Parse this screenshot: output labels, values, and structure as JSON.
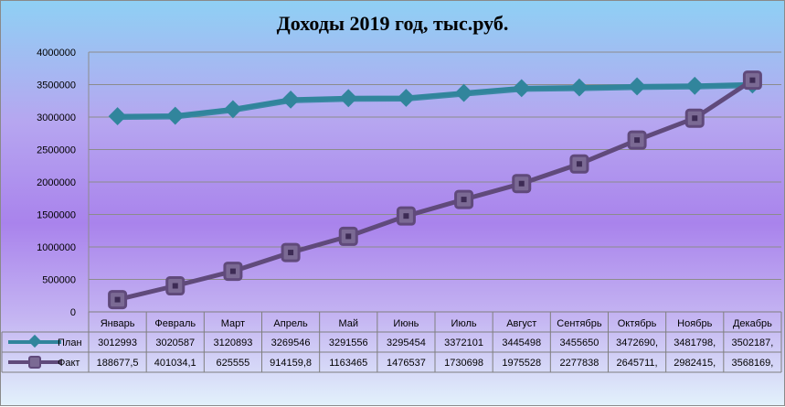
{
  "chart_data": {
    "type": "line",
    "title": "Доходы 2019 год, тыс.руб.",
    "categories": [
      "Январь",
      "Февраль",
      "Март",
      "Апрель",
      "Май",
      "Июнь",
      "Июль",
      "Август",
      "Сентябрь",
      "Октябрь",
      "Ноябрь",
      "Декабрь"
    ],
    "y_ticks": [
      "0",
      "500000",
      "1000000",
      "1500000",
      "2000000",
      "2500000",
      "3000000",
      "3500000",
      "4000000"
    ],
    "ylim": [
      0,
      4000000
    ],
    "grid": true,
    "legend": "data-table",
    "series": [
      {
        "name": "План",
        "color": "#31859c",
        "values": [
          3012993,
          3020587,
          3120893,
          3269546,
          3291556,
          3295454,
          3372101,
          3445498,
          3455650,
          3472690,
          3481798,
          3502187
        ],
        "labels": [
          "3012993",
          "3020587",
          "3120893",
          "3269546",
          "3291556",
          "3295454",
          "3372101",
          "3445498",
          "3455650",
          "3472690,",
          "3481798,",
          "3502187,"
        ]
      },
      {
        "name": "Факт",
        "color": "#604a7b",
        "values": [
          188677.5,
          401034.1,
          625555,
          914159.8,
          1163465,
          1476537,
          1730698,
          1975528,
          2277838,
          2645711,
          2982415,
          3568169
        ],
        "labels": [
          "188677,5",
          "401034,1",
          "625555",
          "914159,8",
          "1163465",
          "1476537",
          "1730698",
          "1975528",
          "2277838",
          "2645711,",
          "2982415,",
          "3568169,"
        ]
      }
    ]
  }
}
